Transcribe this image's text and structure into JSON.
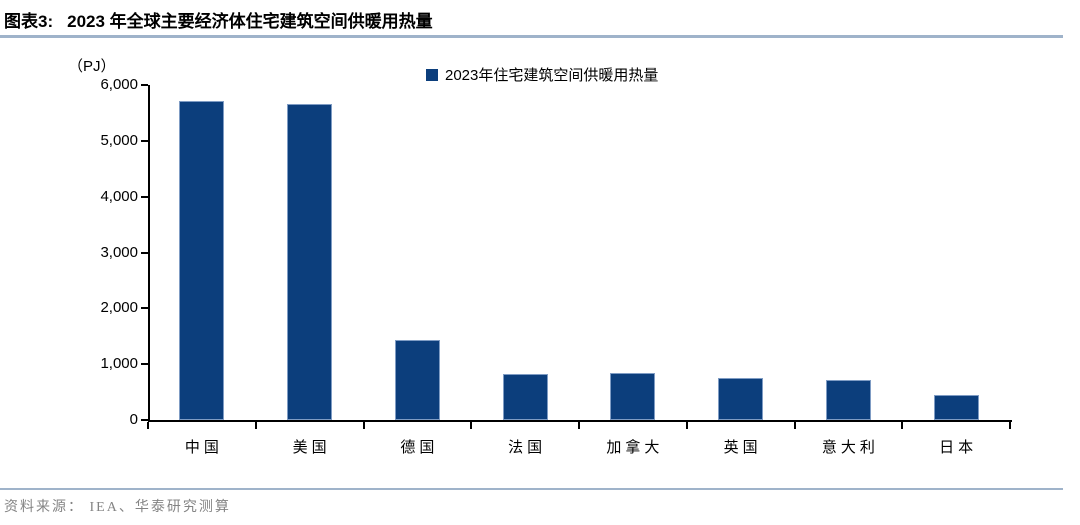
{
  "header": {
    "label": "图表3:",
    "title": "2023 年全球主要经济体住宅建筑空间供暖用热量"
  },
  "chart_data": {
    "type": "bar",
    "title": "2023 年全球主要经济体住宅建筑空间供暖用热量",
    "unit_label": "（PJ）",
    "legend": "2023年住宅建筑空间供暖用热量",
    "legend_position": "top-center",
    "categories": [
      "中国",
      "美国",
      "德国",
      "法国",
      "加拿大",
      "英国",
      "意大利",
      "日本"
    ],
    "values": [
      5710,
      5660,
      1430,
      830,
      840,
      750,
      720,
      450
    ],
    "xlabel": "",
    "ylabel": "PJ",
    "ylim": [
      0,
      6000
    ],
    "ytick_step": 1000,
    "grid": false,
    "bar_color": "#0c3e7c",
    "axis_color": "#000000",
    "accent_line_color": "#9fb3ca"
  },
  "footer": {
    "source": "资料来源： IEA、华泰研究测算"
  }
}
